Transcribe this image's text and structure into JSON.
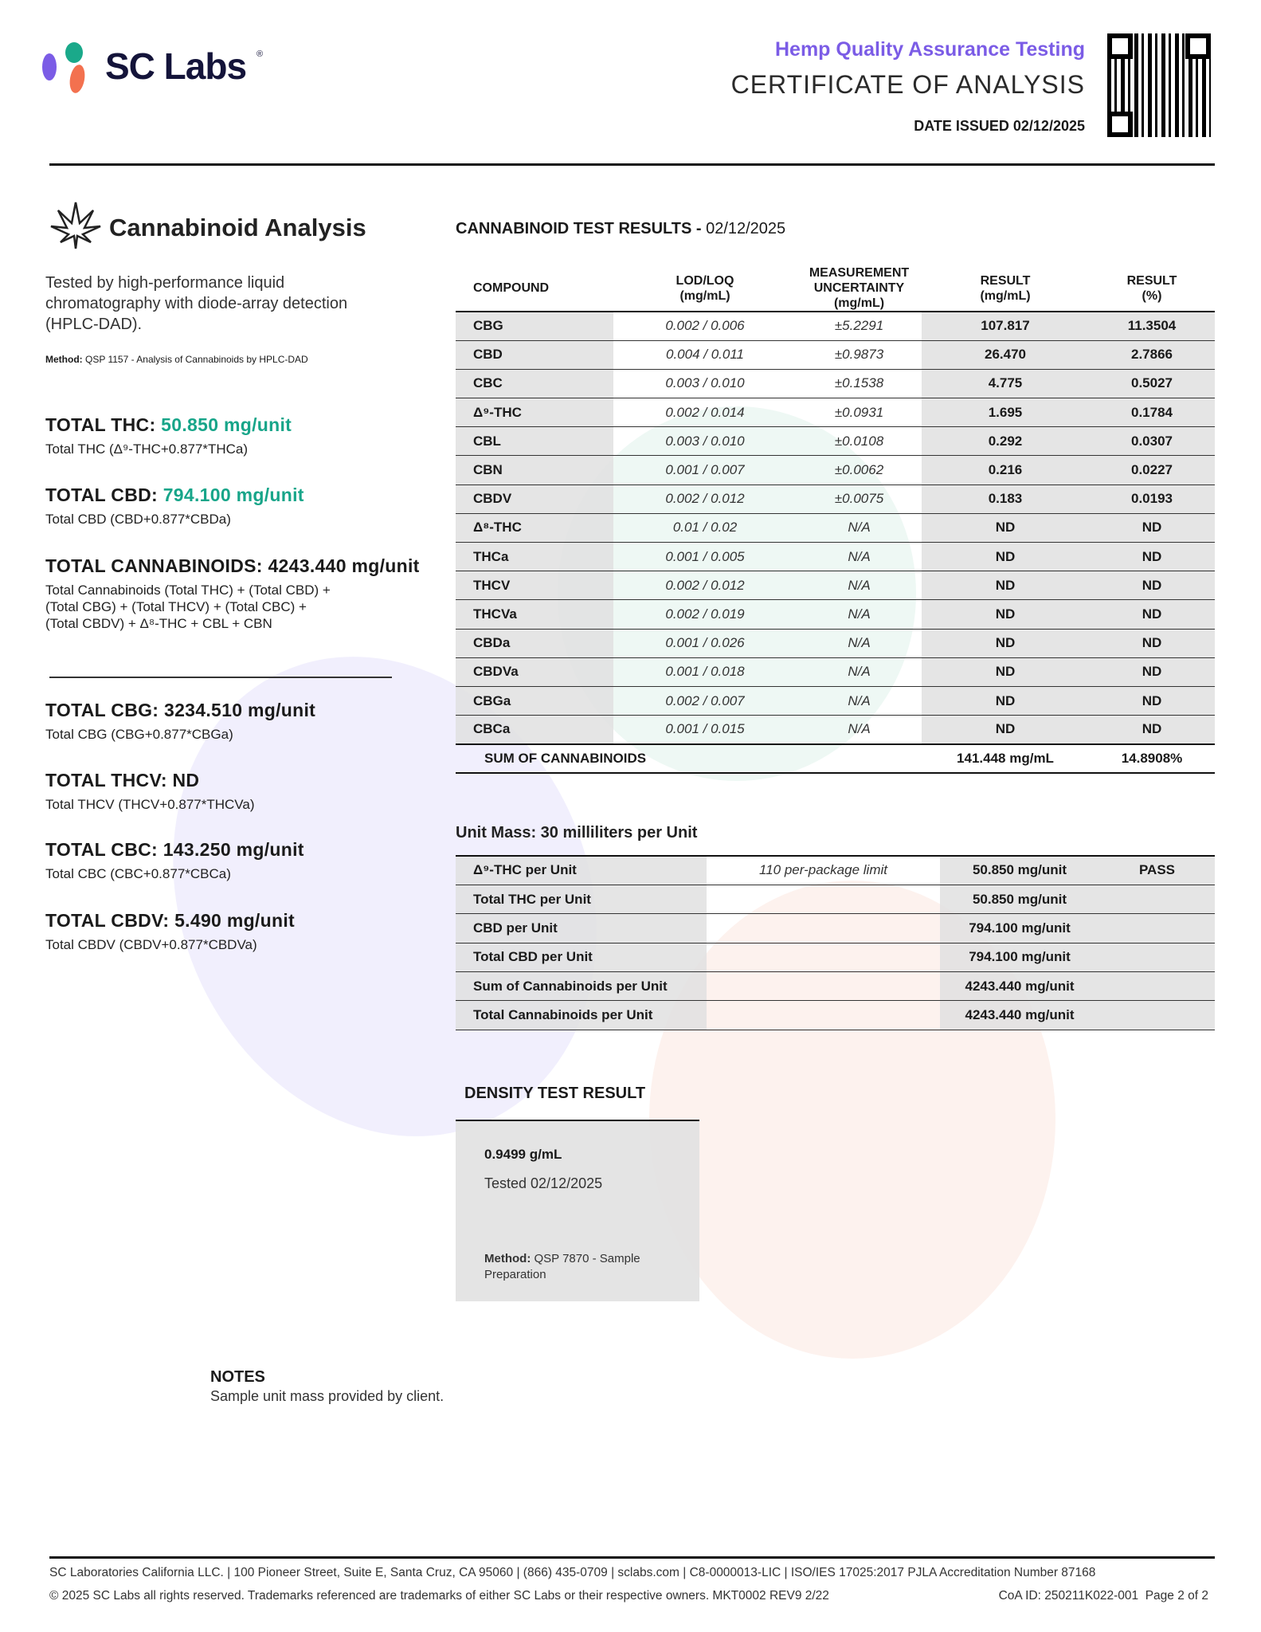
{
  "brand": {
    "name": "SC Labs",
    "registered": "®",
    "colors": {
      "purple": "#7b5ce6",
      "teal": "#1aa98a",
      "coral": "#f3714f",
      "navy": "#14143a"
    }
  },
  "header": {
    "subtitle": "Hemp Quality Assurance Testing",
    "title": "CERTIFICATE OF ANALYSIS",
    "date_issued": "DATE ISSUED 02/12/2025",
    "qr": "qr-code-icon"
  },
  "analysis": {
    "icon": "cannabis-leaf-icon",
    "title": "Cannabinoid Analysis",
    "description": [
      "Tested by high-performance liquid",
      "chromatography with diode-array detection",
      "(HPLC-DAD)."
    ],
    "method_label": "Method:",
    "method": "QSP 1157 - Analysis of Cannabinoids by HPLC-DAD"
  },
  "totals": [
    {
      "label": "TOTAL THC:",
      "value": "50.850 mg/unit",
      "highlight": true,
      "formula": [
        "Total THC (Δ⁹-THC+0.877*THCa)"
      ]
    },
    {
      "label": "TOTAL CBD:",
      "value": "794.100 mg/unit",
      "highlight": true,
      "formula": [
        "Total CBD (CBD+0.877*CBDa)"
      ]
    },
    {
      "label": "TOTAL CANNABINOIDS:",
      "value": "4243.440 mg/unit",
      "highlight": false,
      "formula": [
        "Total Cannabinoids (Total THC) + (Total CBD) +",
        "(Total CBG) + (Total THCV) + (Total CBC) +",
        "(Total CBDV) + Δ⁸-THC + CBL + CBN"
      ]
    },
    {
      "label": "TOTAL CBG:",
      "value": "3234.510 mg/unit",
      "highlight": false,
      "formula": [
        "Total CBG (CBG+0.877*CBGa)"
      ]
    },
    {
      "label": "TOTAL THCV:",
      "value": "ND",
      "highlight": false,
      "formula": [
        "Total THCV (THCV+0.877*THCVa)"
      ]
    },
    {
      "label": "TOTAL CBC:",
      "value": "143.250 mg/unit",
      "highlight": false,
      "formula": [
        "Total CBC (CBC+0.877*CBCa)"
      ]
    },
    {
      "label": "TOTAL CBDV:",
      "value": "5.490 mg/unit",
      "highlight": false,
      "formula": [
        "Total CBDV (CBDV+0.877*CBDVa)"
      ]
    }
  ],
  "results": {
    "title": "CANNABINOID TEST RESULTS -",
    "date": "02/12/2025",
    "columns": [
      "COMPOUND",
      "LOD/LOQ\n(mg/mL)",
      "MEASUREMENT\nUNCERTAINTY (mg/mL)",
      "RESULT\n(mg/mL)",
      "RESULT\n(%)"
    ],
    "rows": [
      [
        "CBG",
        "0.002 / 0.006",
        "±5.2291",
        "107.817",
        "11.3504"
      ],
      [
        "CBD",
        "0.004 / 0.011",
        "±0.9873",
        "26.470",
        "2.7866"
      ],
      [
        "CBC",
        "0.003 / 0.010",
        "±0.1538",
        "4.775",
        "0.5027"
      ],
      [
        "Δ⁹-THC",
        "0.002 / 0.014",
        "±0.0931",
        "1.695",
        "0.1784"
      ],
      [
        "CBL",
        "0.003 / 0.010",
        "±0.0108",
        "0.292",
        "0.0307"
      ],
      [
        "CBN",
        "0.001 / 0.007",
        "±0.0062",
        "0.216",
        "0.0227"
      ],
      [
        "CBDV",
        "0.002 / 0.012",
        "±0.0075",
        "0.183",
        "0.0193"
      ],
      [
        "Δ⁸-THC",
        "0.01 / 0.02",
        "N/A",
        "ND",
        "ND"
      ],
      [
        "THCa",
        "0.001 / 0.005",
        "N/A",
        "ND",
        "ND"
      ],
      [
        "THCV",
        "0.002 / 0.012",
        "N/A",
        "ND",
        "ND"
      ],
      [
        "THCVa",
        "0.002 / 0.019",
        "N/A",
        "ND",
        "ND"
      ],
      [
        "CBDa",
        "0.001 / 0.026",
        "N/A",
        "ND",
        "ND"
      ],
      [
        "CBDVa",
        "0.001 / 0.018",
        "N/A",
        "ND",
        "ND"
      ],
      [
        "CBGa",
        "0.002 / 0.007",
        "N/A",
        "ND",
        "ND"
      ],
      [
        "CBCa",
        "0.001 / 0.015",
        "N/A",
        "ND",
        "ND"
      ]
    ],
    "sum": {
      "label": "SUM OF CANNABINOIDS",
      "mg": "141.448 mg/mL",
      "pct": "14.8908%"
    }
  },
  "unit": {
    "title": "Unit Mass: 30 milliliters per Unit",
    "rows": [
      [
        "Δ⁹-THC per Unit",
        "110 per-package limit",
        "50.850 mg/unit",
        "PASS"
      ],
      [
        "Total THC per Unit",
        "",
        "50.850 mg/unit",
        ""
      ],
      [
        "CBD per Unit",
        "",
        "794.100 mg/unit",
        ""
      ],
      [
        "Total CBD per Unit",
        "",
        "794.100 mg/unit",
        ""
      ],
      [
        "Sum of Cannabinoids per Unit",
        "",
        "4243.440 mg/unit",
        ""
      ],
      [
        "Total Cannabinoids per Unit",
        "",
        "4243.440 mg/unit",
        ""
      ]
    ]
  },
  "density": {
    "title": "DENSITY TEST RESULT",
    "value": "0.9499 g/mL",
    "tested": "Tested 02/12/2025",
    "method_label": "Method:",
    "method": "QSP 7870 - Sample",
    "method2": "Preparation"
  },
  "notes": {
    "title": "NOTES",
    "text": "Sample unit mass provided by client."
  },
  "footer": {
    "line1": "SC Laboratories California LLC. | 100 Pioneer Street, Suite E, Santa Cruz, CA 95060 | (866) 435-0709 | sclabs.com | C8-0000013-LIC | ISO/IES 17025:2017 PJLA Accreditation Number 87168",
    "line2": "© 2025 SC Labs all rights reserved. Trademarks referenced are trademarks of either SC Labs or their respective owners. MKT0002 REV9 2/22",
    "coa": "CoA ID: 250211K022-001  Page 2 of 2"
  }
}
